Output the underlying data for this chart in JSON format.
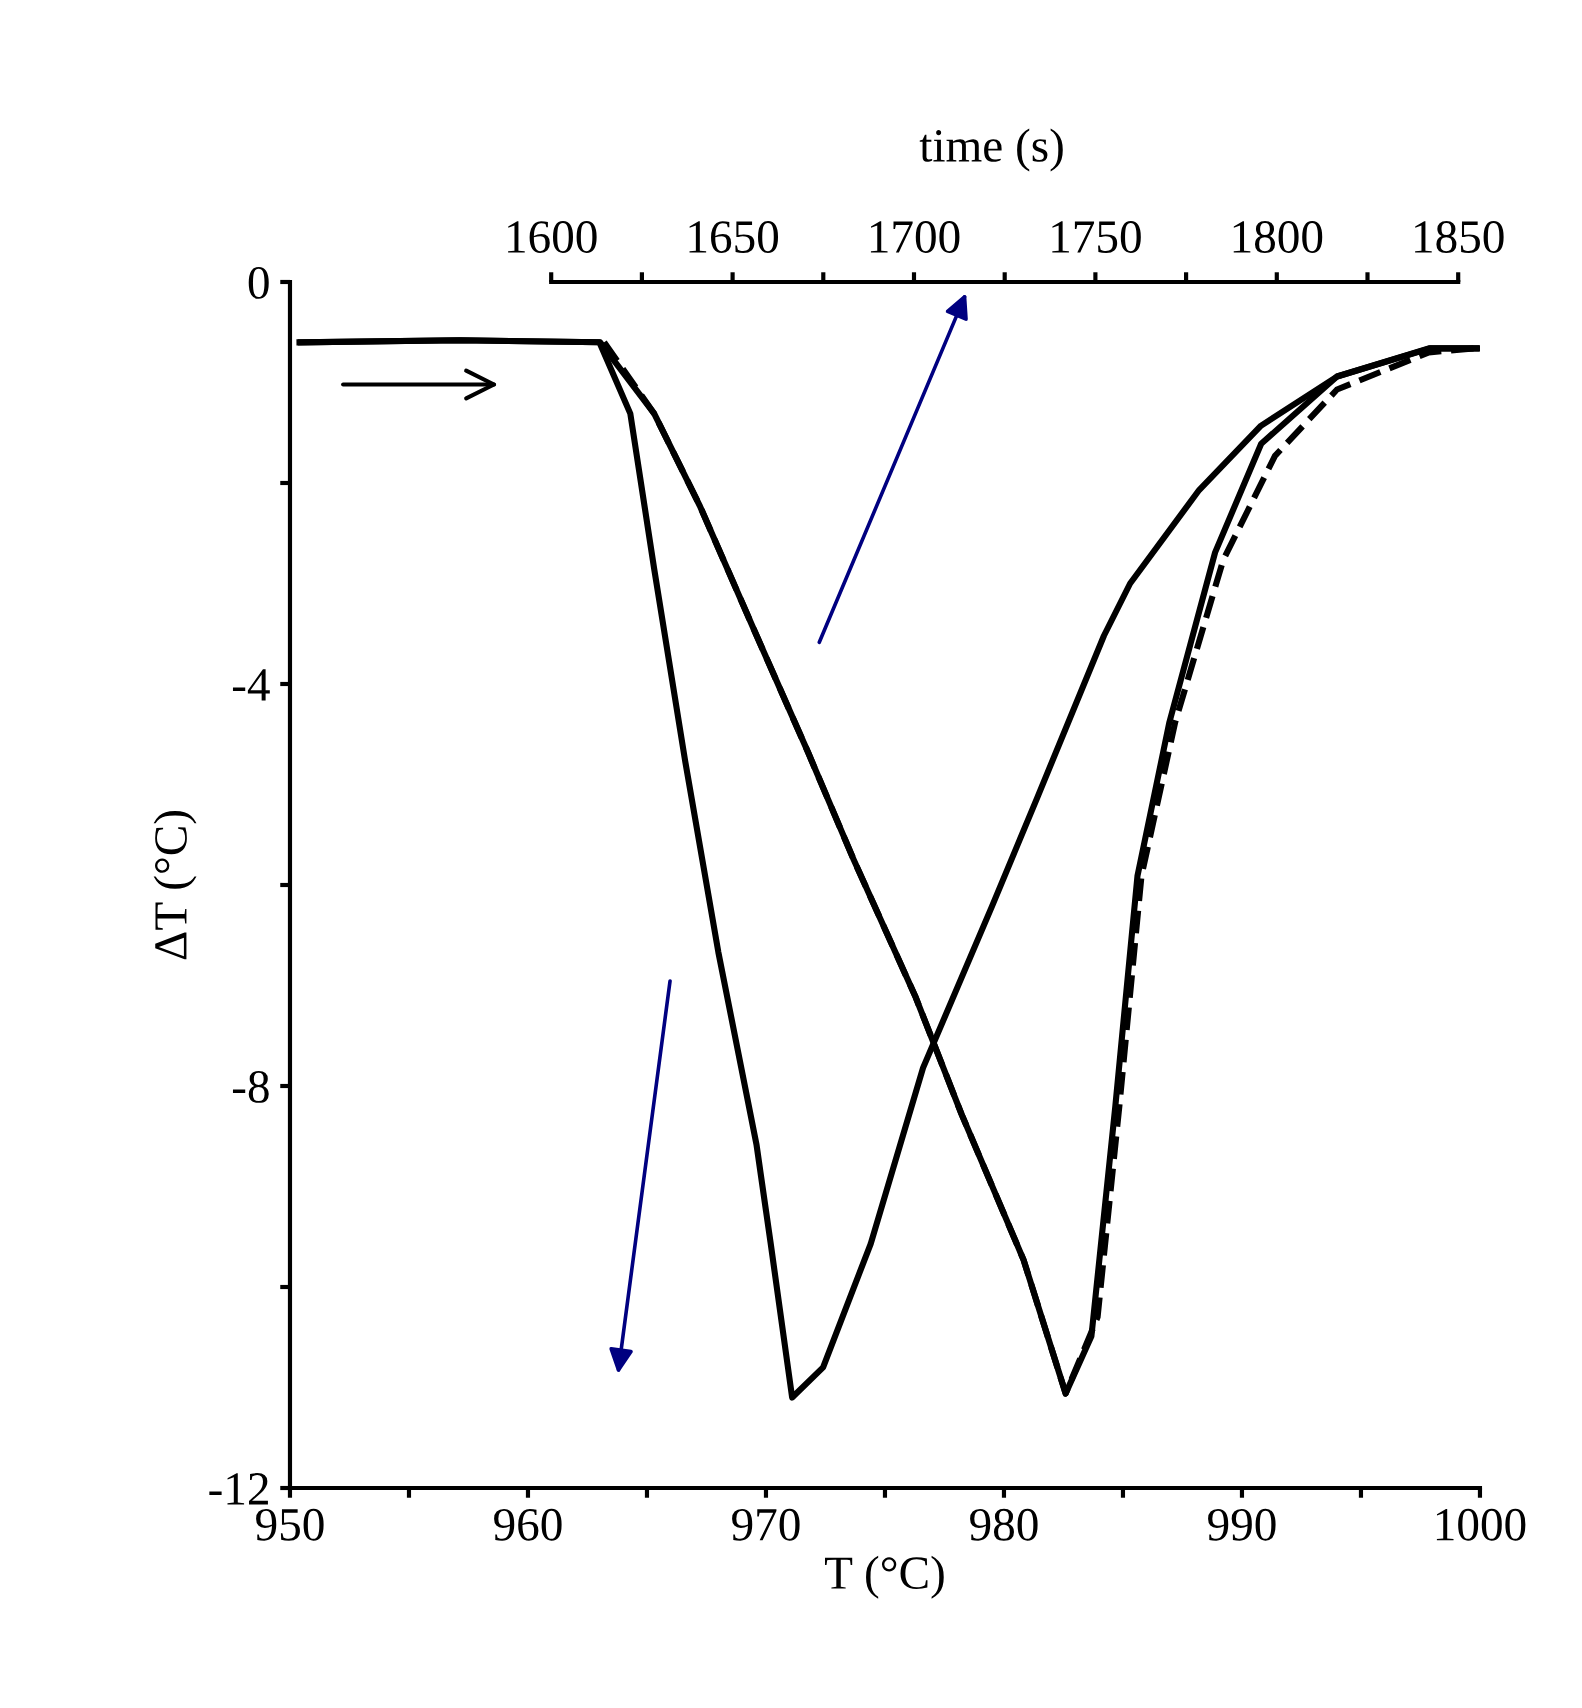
{
  "chart_data": {
    "type": "line",
    "xlabel": "T (°C)",
    "ylabel": "ΔT (°C)",
    "x2label": "time (s)",
    "xlim": [
      950,
      1000
    ],
    "xticks": [
      950,
      {
        "value": 955,
        "label": null
      },
      960,
      {
        "value": 965,
        "label": null
      },
      970,
      {
        "value": 975,
        "label": null
      },
      980,
      {
        "value": 985,
        "label": null
      },
      990,
      {
        "value": 995,
        "label": null
      },
      1000
    ],
    "ylim": [
      -12,
      0
    ],
    "yticks": [
      0,
      {
        "value": -2,
        "label": null
      },
      -4,
      {
        "value": -6,
        "label": null
      },
      -8,
      {
        "value": -10,
        "label": null
      },
      -12
    ],
    "x2lim": [
      1528,
      1856
    ],
    "x2ticks": [
      1600,
      {
        "value": 1625,
        "label": null
      },
      1650,
      {
        "value": 1675,
        "label": null
      },
      1700,
      {
        "value": 1725,
        "label": null
      },
      1750,
      {
        "value": 1775,
        "label": null
      },
      1800,
      {
        "value": 1825,
        "label": null
      },
      1850
    ],
    "grid": false,
    "marker": "none",
    "series": [
      {
        "color": "#000000",
        "line_style": "solid",
        "x": [
          950.4,
          957.1,
          963.0,
          964.3,
          965.3,
          966.6,
          968.0,
          969.6,
          970.2,
          971.1,
          972.4,
          974.4,
          976.6,
          979.5,
          981.4,
          984.2,
          985.3,
          988.2,
          990.8,
          994.0,
          997.9,
          1000.0
        ],
        "values": [
          -0.6,
          -0.58,
          -0.6,
          -1.31,
          -2.85,
          -4.76,
          -6.67,
          -8.58,
          -9.57,
          -11.1,
          -10.8,
          -9.57,
          -7.82,
          -6.21,
          -5.13,
          -3.52,
          -3.0,
          -2.07,
          -1.43,
          -0.94,
          -0.66,
          -0.66
        ]
      },
      {
        "color": "#000000",
        "line_style": "solid",
        "axis": "x2",
        "x": [
          1531,
          1575,
          1613.5,
          1628.4,
          1641.0,
          1655.9,
          1670.8,
          1683.4,
          1700.5,
          1713.1,
          1730.2,
          1741.8,
          1748.9,
          1755.5,
          1761.6,
          1770.4,
          1783.0,
          1795.7,
          1816.6,
          1841.9,
          1855
        ],
        "values": [
          -0.6,
          -0.58,
          -0.6,
          -1.31,
          -2.23,
          -3.46,
          -4.68,
          -5.75,
          -7.12,
          -8.28,
          -9.73,
          -11.06,
          -10.49,
          -8.2,
          -5.91,
          -4.38,
          -2.69,
          -1.61,
          -0.94,
          -0.66,
          -0.66
        ]
      },
      {
        "color": "#000000",
        "line_style": "dashed",
        "axis": "x2",
        "x": [
          1614.6,
          1628.4,
          1641.0,
          1655.9,
          1670.8,
          1683.4,
          1700.5,
          1713.1,
          1730.2,
          1741.8,
          1750.6,
          1756.6,
          1762.7,
          1772.0,
          1785.2,
          1799.5,
          1816.6,
          1841.9,
          1855
        ],
        "values": [
          -0.6,
          -1.31,
          -2.23,
          -3.46,
          -4.68,
          -5.75,
          -7.12,
          -8.28,
          -9.73,
          -11.06,
          -10.3,
          -8.2,
          -5.91,
          -4.38,
          -2.77,
          -1.73,
          -1.07,
          -0.7,
          -0.66
        ]
      }
    ]
  }
}
